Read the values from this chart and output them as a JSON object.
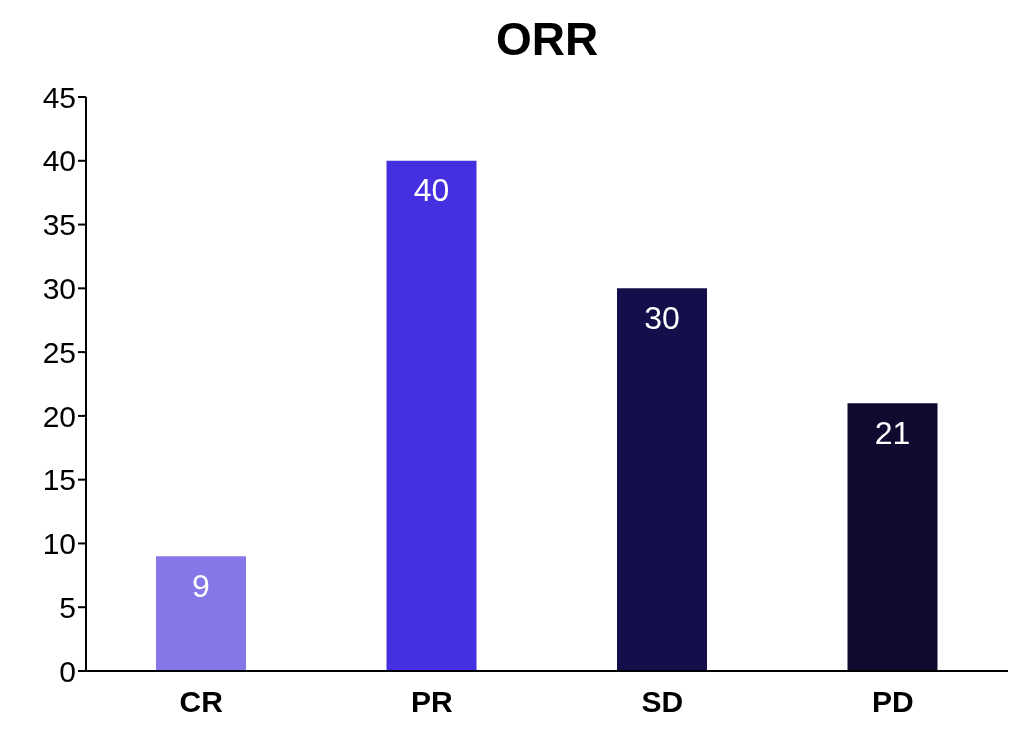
{
  "chart_data": {
    "type": "bar",
    "title": "ORR",
    "categories": [
      "CR",
      "PR",
      "SD",
      "PD"
    ],
    "values": [
      9,
      40,
      30,
      21
    ],
    "colors": [
      "#8677e8",
      "#4430e0",
      "#140f4a",
      "#0e0a30"
    ],
    "ylim": [
      0,
      45
    ],
    "yticks": [
      0,
      5,
      10,
      15,
      20,
      25,
      30,
      35,
      40,
      45
    ],
    "grid": false,
    "data_labels": true
  }
}
